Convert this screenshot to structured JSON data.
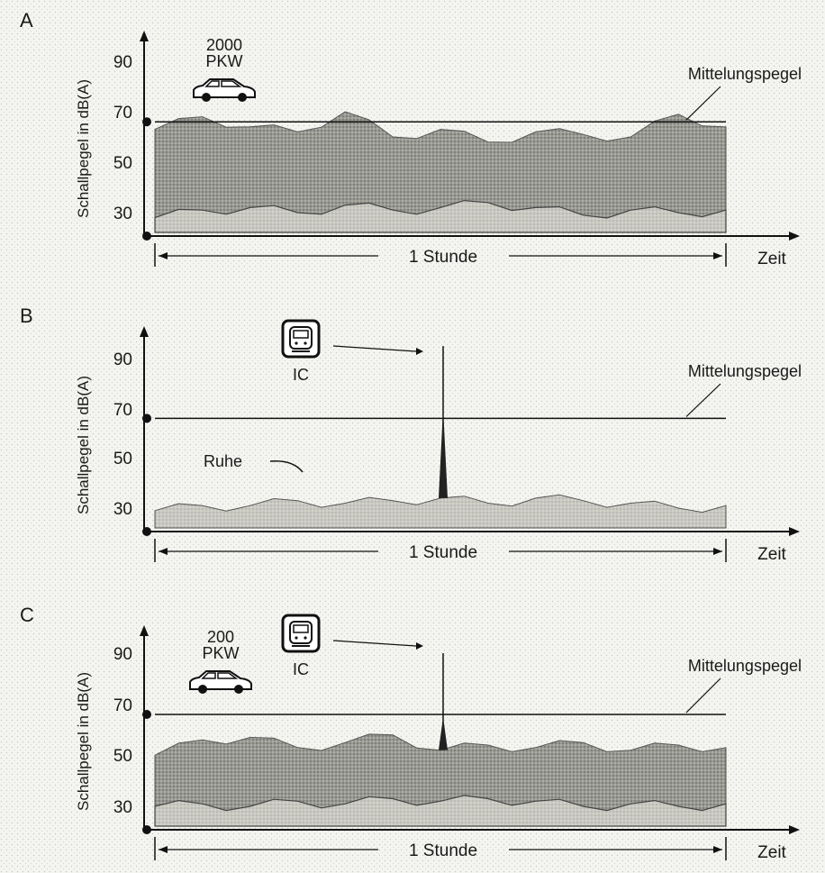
{
  "chart_data": [
    {
      "type": "area",
      "panel_label": "A",
      "ylabel": "Schallpegel in dB(A)",
      "xlabel": "Zeit",
      "yticks": [
        "90",
        "70",
        "50",
        "30"
      ],
      "ylim": [
        20,
        100
      ],
      "duration_label": "1 Stunde",
      "mean_level_label": "Mittelungspegel",
      "mean_level_db": 66,
      "vehicle": {
        "count_label": "2000",
        "type_label": "PKW",
        "icon": "car-icon"
      },
      "x_minutes": [
        0,
        5,
        10,
        15,
        20,
        25,
        30,
        35,
        40,
        45,
        50,
        55,
        60
      ],
      "series": [
        {
          "values_max": [
            63,
            68,
            64,
            62,
            70,
            60,
            63,
            58,
            62,
            61,
            60,
            69,
            64
          ]
        },
        {
          "values_min": [
            28,
            31,
            32,
            30,
            33,
            31,
            32,
            34,
            32,
            29,
            31,
            30,
            31
          ]
        }
      ]
    },
    {
      "type": "area",
      "panel_label": "B",
      "ylabel": "Schallpegel in dB(A)",
      "xlabel": "Zeit",
      "yticks": [
        "90",
        "70",
        "50",
        "30"
      ],
      "ylim": [
        20,
        100
      ],
      "duration_label": "1 Stunde",
      "mean_level_label": "Mittelungspegel",
      "mean_level_db": 66,
      "train": {
        "label": "IC",
        "icon": "train-icon",
        "peak_db": 95,
        "peak_minute": 30
      },
      "quiet_label": "Ruhe",
      "x_minutes": [
        0,
        5,
        10,
        15,
        20,
        25,
        30,
        35,
        40,
        45,
        50,
        55,
        60
      ],
      "series": [
        {
          "values_max": [
            29,
            31,
            31,
            33,
            32,
            33,
            34,
            32,
            34,
            33,
            32,
            30,
            31
          ]
        }
      ]
    },
    {
      "type": "area",
      "panel_label": "C",
      "ylabel": "Schallpegel in dB(A)",
      "xlabel": "Zeit",
      "yticks": [
        "90",
        "70",
        "50",
        "30"
      ],
      "ylim": [
        20,
        100
      ],
      "duration_label": "1 Stunde",
      "mean_level_label": "Mittelungspegel",
      "mean_level_db": 66,
      "vehicle": {
        "count_label": "200",
        "type_label": "PKW",
        "icon": "car-icon"
      },
      "train": {
        "label": "IC",
        "icon": "train-icon",
        "peak_db": 90,
        "peak_minute": 30
      },
      "x_minutes": [
        0,
        5,
        10,
        15,
        20,
        25,
        30,
        35,
        40,
        45,
        50,
        55,
        60
      ],
      "series": [
        {
          "values_max": [
            50,
            56,
            57,
            53,
            55,
            58,
            52,
            54,
            53,
            55,
            52,
            54,
            53
          ]
        },
        {
          "values_min": [
            30,
            31,
            30,
            32,
            31,
            33,
            32,
            33,
            32,
            30,
            31,
            30,
            31
          ]
        }
      ]
    }
  ]
}
